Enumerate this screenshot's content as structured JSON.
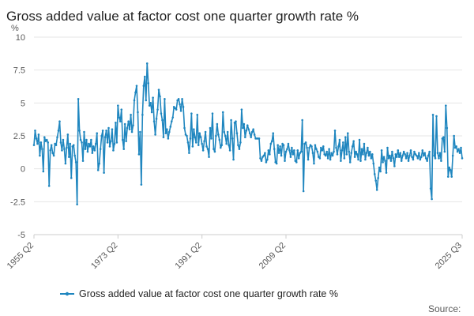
{
  "chart_data": {
    "type": "line",
    "title": "Gross added value at factor cost one quarter growth rate %",
    "ylabel": "%",
    "xlabel": "",
    "ylim": [
      -5,
      10
    ],
    "y_ticks": [
      "10",
      "7.5",
      "5",
      "2.5",
      "0",
      "-2.5",
      "-5"
    ],
    "x_ticks": [
      "1955 Q2",
      "1973 Q2",
      "1991 Q2",
      "2009 Q2",
      "2025 Q3"
    ],
    "x_range": [
      "1955 Q2",
      "2025 Q3"
    ],
    "series": [
      {
        "name": "Gross added value at factor cost one quarter growth rate %",
        "color": "#1f86bf",
        "approx_values": [
          1.8,
          2.9,
          2.3,
          1.9,
          2.6,
          1.0,
          2.0,
          1.5,
          -0.2,
          2.4,
          2.1,
          2.2,
          2.0,
          -1.3,
          1.4,
          1.8,
          1.2,
          1.0,
          1.9,
          1.8,
          2.4,
          2.9,
          3.6,
          2.0,
          1.4,
          2.2,
          1.5,
          0.4,
          1.6,
          2.6,
          0.9,
          1.9,
          -0.7,
          1.7,
          1.8,
          1.0,
          0.5,
          -2.7,
          5.3,
          2.9,
          2.2,
          2.0,
          0.6,
          2.8,
          1.5,
          2.2,
          1.3,
          1.9,
          1.7,
          2.2,
          1.2,
          1.7,
          1.4,
          1.9,
          2.7,
          -0.1,
          0.4,
          1.5,
          2.5,
          2.9,
          -0.3,
          2.4,
          2.9,
          2.0,
          3.1,
          1.7,
          2.1,
          3.0,
          1.4,
          1.9,
          3.5,
          2.0,
          4.8,
          3.9,
          3.6,
          4.5,
          2.2,
          1.5,
          3.4,
          2.1,
          3.1,
          3.6,
          3.0,
          4.1,
          2.8,
          3.3,
          5.2,
          5.8,
          6.3,
          4.3,
          1.1,
          2.8,
          -1.2,
          4.1,
          6.3,
          7.0,
          5.2,
          8.0,
          6.5,
          4.8,
          5.0,
          4.3,
          5.4,
          3.6,
          2.6,
          3.8,
          4.5,
          6.0,
          5.5,
          4.2,
          3.7,
          2.4,
          5.3,
          2.7,
          3.0,
          2.3,
          2.8,
          3.2,
          3.6,
          3.9,
          4.7,
          4.6,
          4.5,
          5.2,
          5.3,
          4.9,
          4.4,
          5.3,
          4.7,
          3.1,
          2.6,
          2.5,
          2.0,
          1.2,
          2.3,
          4.2,
          1.7,
          3.0,
          2.4,
          2.0,
          4.1,
          1.8,
          2.7,
          2.4,
          1.9,
          1.4,
          2.1,
          2.8,
          1.7,
          1.5,
          0.9,
          3.1,
          2.3,
          4.2,
          1.5,
          1.3,
          2.5,
          3.4,
          2.6,
          2.2,
          1.6,
          1.8,
          4.3,
          2.8,
          2.5,
          1.9,
          2.8,
          1.8,
          1.4,
          3.7,
          2.3,
          0.7,
          3.5,
          3.6,
          2.7,
          1.8,
          1.5,
          2.0,
          4.5,
          3.1,
          3.4,
          2.4,
          2.9,
          3.3,
          3.0,
          2.7,
          2.4,
          2.8,
          3.0,
          2.6,
          2.3,
          2.3,
          2.3,
          2.3,
          0.8,
          0.6,
          0.9,
          1.0,
          1.2,
          0.5,
          0.7,
          1.4,
          1.1,
          1.9,
          2.1,
          2.7,
          1.5,
          0.5,
          0.4,
          1.8,
          1.2,
          1.7,
          1.0,
          1.9,
          1.8,
          0.6,
          1.3,
          1.5,
          1.9,
          1.4,
          0.9,
          1.6,
          1.1,
          1.4,
          0.6,
          0.5,
          1.4,
          0.8,
          1.2,
          1.3,
          3.7,
          -1.7,
          1.9,
          2.0,
          1.6,
          0.7,
          1.6,
          1.8,
          1.7,
          1.2,
          0.4,
          1.8,
          1.5,
          1.3,
          0.9,
          0.8,
          1.6,
          1.4,
          1.7,
          1.1,
          1.0,
          1.3,
          0.8,
          1.5,
          0.7,
          1.2,
          1.0,
          1.3,
          2.9,
          1.6,
          1.1,
          1.7,
          2.2,
          0.6,
          1.4,
          2.0,
          0.8,
          2.4,
          1.1,
          2.7,
          1.3,
          0.5,
          1.2,
          1.7,
          2.1,
          0.9,
          1.3,
          1.1,
          0.7,
          2.2,
          0.6,
          1.5,
          1.1,
          1.9,
          0.7,
          1.2,
          1.6,
          1.0,
          1.3,
          0.8,
          1.1,
          0.4,
          -0.4,
          -0.9,
          -1.6,
          -0.7,
          0.1,
          -0.2,
          1.4,
          0.5,
          0.9,
          0.6,
          -0.3,
          1.6,
          0.8,
          1.0,
          0.6,
          1.3,
          0.8,
          0.2,
          1.1,
          0.9,
          1.4,
          0.9,
          1.2,
          0.6,
          1.0,
          1.3,
          1.1,
          0.8,
          1.2,
          0.6,
          1.0,
          1.4,
          0.9,
          0.7,
          1.3,
          1.1,
          1.0,
          0.8,
          1.2,
          0.7,
          0.9,
          1.4,
          1.0,
          1.2,
          0.8,
          0.6,
          1.0,
          1.3,
          -1.5,
          -2.3,
          4.1,
          1.0,
          0.8,
          4.0,
          1.2,
          0.8,
          1.2,
          0.6,
          2.3,
          2.4,
          1.3,
          4.8,
          3.1,
          -0.6,
          0.1,
          -0.1,
          -0.6,
          1.0,
          2.5,
          1.6,
          1.7,
          1.3,
          1.5,
          1.2,
          1.6,
          0.8
        ]
      }
    ],
    "legend": [
      "Gross added value at factor cost one quarter growth rate %"
    ],
    "legend_position": "bottom",
    "grid": true
  },
  "source_label": "Source:"
}
